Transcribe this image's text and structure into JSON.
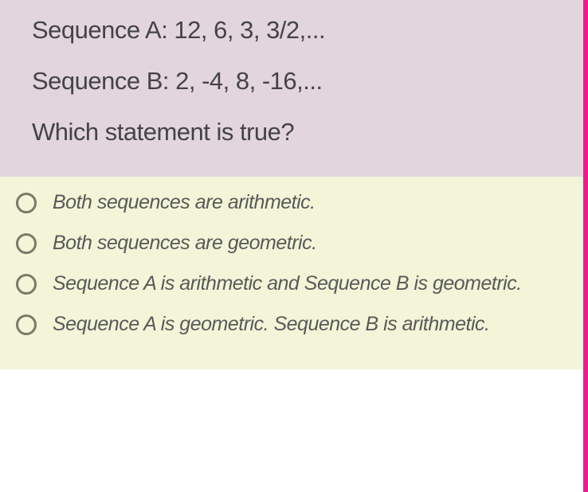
{
  "question": {
    "line1": "Sequence A: 12, 6, 3, 3/2,...",
    "line2": "Sequence B:  2, -4, 8, -16,...",
    "prompt": "Which statement is true?"
  },
  "answers": [
    {
      "text": "Both sequences are arithmetic."
    },
    {
      "text": "Both sequences are geometric."
    },
    {
      "text": "Sequence A is arithmetic and Sequence B is geometric."
    },
    {
      "text": "Sequence A is geometric. Sequence B is arithmetic."
    }
  ],
  "colors": {
    "question_bg": "#e2d5de",
    "answers_bg": "#f3f5d8",
    "border_right": "#e91e8c",
    "text_primary": "#444",
    "text_answer": "#595959",
    "radio_border": "#7a7a68"
  }
}
